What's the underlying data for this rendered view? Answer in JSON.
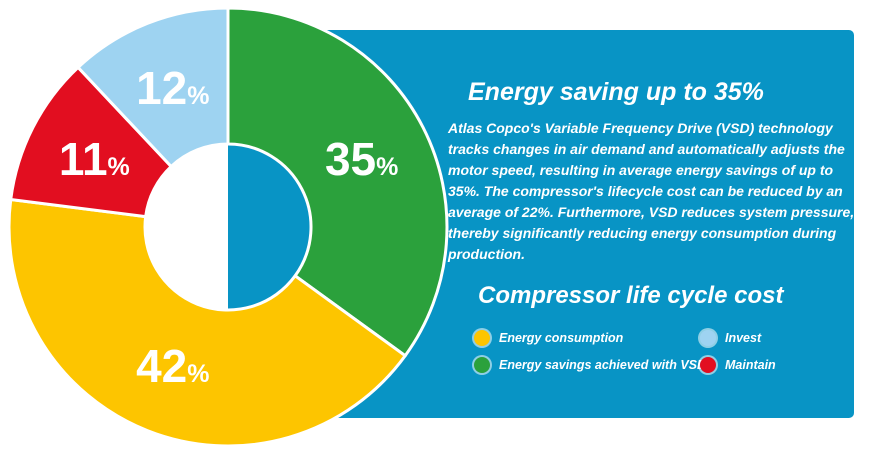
{
  "panel": {
    "background": "#0894c5",
    "title": "Energy saving up to 35%",
    "paragraph": "Atlas Copco's Variable Frequency Drive (VSD) technology tracks changes in air demand and automatically adjusts the motor speed, resulting in average energy savings of up to 35%. The compressor's lifecycle cost can be reduced by an average of 22%. Furthermore, VSD reduces system pressure, thereby significantly reducing energy consumption during production.",
    "section_heading": "Compressor life cycle cost",
    "legend": [
      {
        "key": "energy-consumption",
        "label": "Energy consumption",
        "color": "#fdc500"
      },
      {
        "key": "invest",
        "label": "Invest",
        "color": "#9ed3f1"
      },
      {
        "key": "energy-savings-vsd",
        "label": "Energy savings achieved with VSD",
        "color": "#2ba13c"
      },
      {
        "key": "maintain",
        "label": "Maintain",
        "color": "#e20e20"
      }
    ]
  },
  "chart_data": {
    "type": "pie",
    "donut": true,
    "start_angle_deg": 0,
    "direction": "clockwise",
    "unit": "%",
    "title": "Compressor life cycle cost",
    "slices": [
      {
        "key": "energy-savings-vsd",
        "label": "Energy savings achieved with VSD",
        "value": 35,
        "display": "35%",
        "color": "#2ba13c"
      },
      {
        "key": "energy-consumption",
        "label": "Energy consumption",
        "value": 42,
        "display": "42%",
        "color": "#fdc500"
      },
      {
        "key": "maintain",
        "label": "Maintain",
        "value": 11,
        "display": "11%",
        "color": "#e20e20"
      },
      {
        "key": "invest",
        "label": "Invest",
        "value": 12,
        "display": "12%",
        "color": "#9ed3f1"
      }
    ],
    "legend_position": "bottom-right-panel",
    "hole_ratio": 0.38
  }
}
